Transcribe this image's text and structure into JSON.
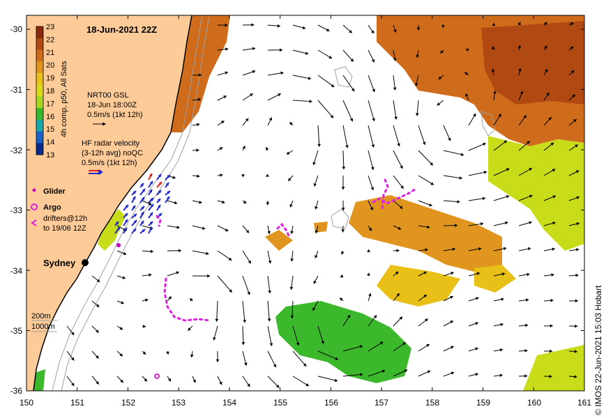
{
  "map": {
    "title": "18-Jun-2021 22Z",
    "colorbar": {
      "label": "4h comp, p50, All Sats",
      "ticks": [
        "23",
        "22",
        "21",
        "20",
        "19",
        "18",
        "17",
        "16",
        "15",
        "14",
        "13"
      ],
      "colors": [
        "#8a2a0a",
        "#b04a12",
        "#cf6c1c",
        "#e0961e",
        "#e8c018",
        "#d8dc1a",
        "#a4d820",
        "#36b82c",
        "#18a8a8",
        "#1860c8",
        "#0a2a8a"
      ]
    },
    "legend": {
      "gsl": [
        "NRT00 GSL",
        "18-Jun 18:00Z",
        "0.5m/s (1kt 12h)"
      ],
      "radar": [
        "HF radar velocity",
        "(3-12h avg) noQC",
        "0.5m/s (1kt 12h)"
      ],
      "glider": "Glider",
      "argo": "Argo",
      "drifters": [
        "drifters@12h",
        "to 19/06 12Z"
      ],
      "isobaths": [
        "200m",
        "1000m"
      ]
    },
    "place": "Sydney",
    "x_ticks": [
      "150",
      "151",
      "152",
      "153",
      "154",
      "155",
      "156",
      "157",
      "158",
      "159",
      "160",
      "161"
    ],
    "y_ticks": [
      "-30",
      "-31",
      "-32",
      "-33",
      "-34",
      "-35",
      "-36"
    ],
    "credit": "© IMOS 22-Jun-2021 15:03 Hobart",
    "colors": {
      "land": "#fccb98",
      "coast": "#000000",
      "isobath": "#a0a0a0",
      "arrow": "#000000",
      "radar_arrow": "#1e28c8",
      "radar_arrow_red": "#e01818",
      "drifter": "#e020e0",
      "glider": "#c000c0",
      "warm": "#e0961e",
      "hot": "#cf6c1c",
      "yellow": "#e8c018",
      "lime": "#c8dc1a",
      "green": "#3cb82c"
    }
  }
}
